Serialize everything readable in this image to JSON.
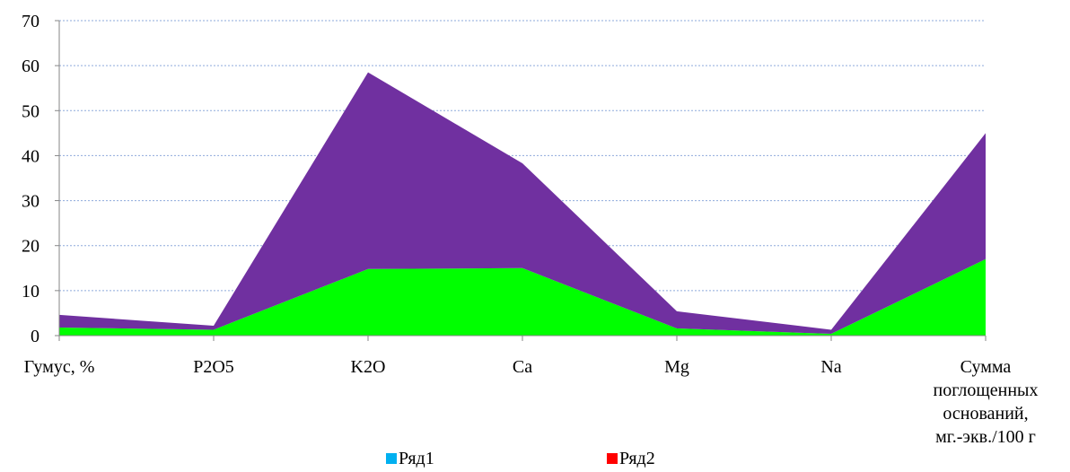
{
  "chart_data": {
    "type": "area",
    "stacked": true,
    "categories": [
      "Гумус, %",
      "P2O5",
      "K2O",
      "Ca",
      "Mg",
      "Na",
      "Сумма поглощенных оснований, мг.-экв./100 г"
    ],
    "category_label_lines": [
      [
        "Гумус, %"
      ],
      [
        "P2O5"
      ],
      [
        "K2O"
      ],
      [
        "Ca"
      ],
      [
        "Mg"
      ],
      [
        "Na"
      ],
      [
        "Сумма",
        "поглощенных",
        "оснований,",
        "мг.-экв./100 г"
      ]
    ],
    "series": [
      {
        "name": "Ряд1",
        "values": [
          1.8,
          1.3,
          14.8,
          15.0,
          1.6,
          0.4,
          17.0
        ],
        "fill": "#00ff00",
        "legend_color": "#00b0f0"
      },
      {
        "name": "Ряд2",
        "values": [
          2.8,
          0.9,
          43.7,
          23.3,
          3.8,
          0.9,
          28.0
        ],
        "fill": "#7030a0",
        "legend_color": "#ff0000"
      }
    ],
    "ylim": [
      0,
      70
    ],
    "yticks": [
      0,
      10,
      20,
      30,
      40,
      50,
      60,
      70
    ],
    "grid": true,
    "grid_color": "#8eaadb",
    "legend_position": "bottom",
    "title": "",
    "xlabel": "",
    "ylabel": ""
  }
}
